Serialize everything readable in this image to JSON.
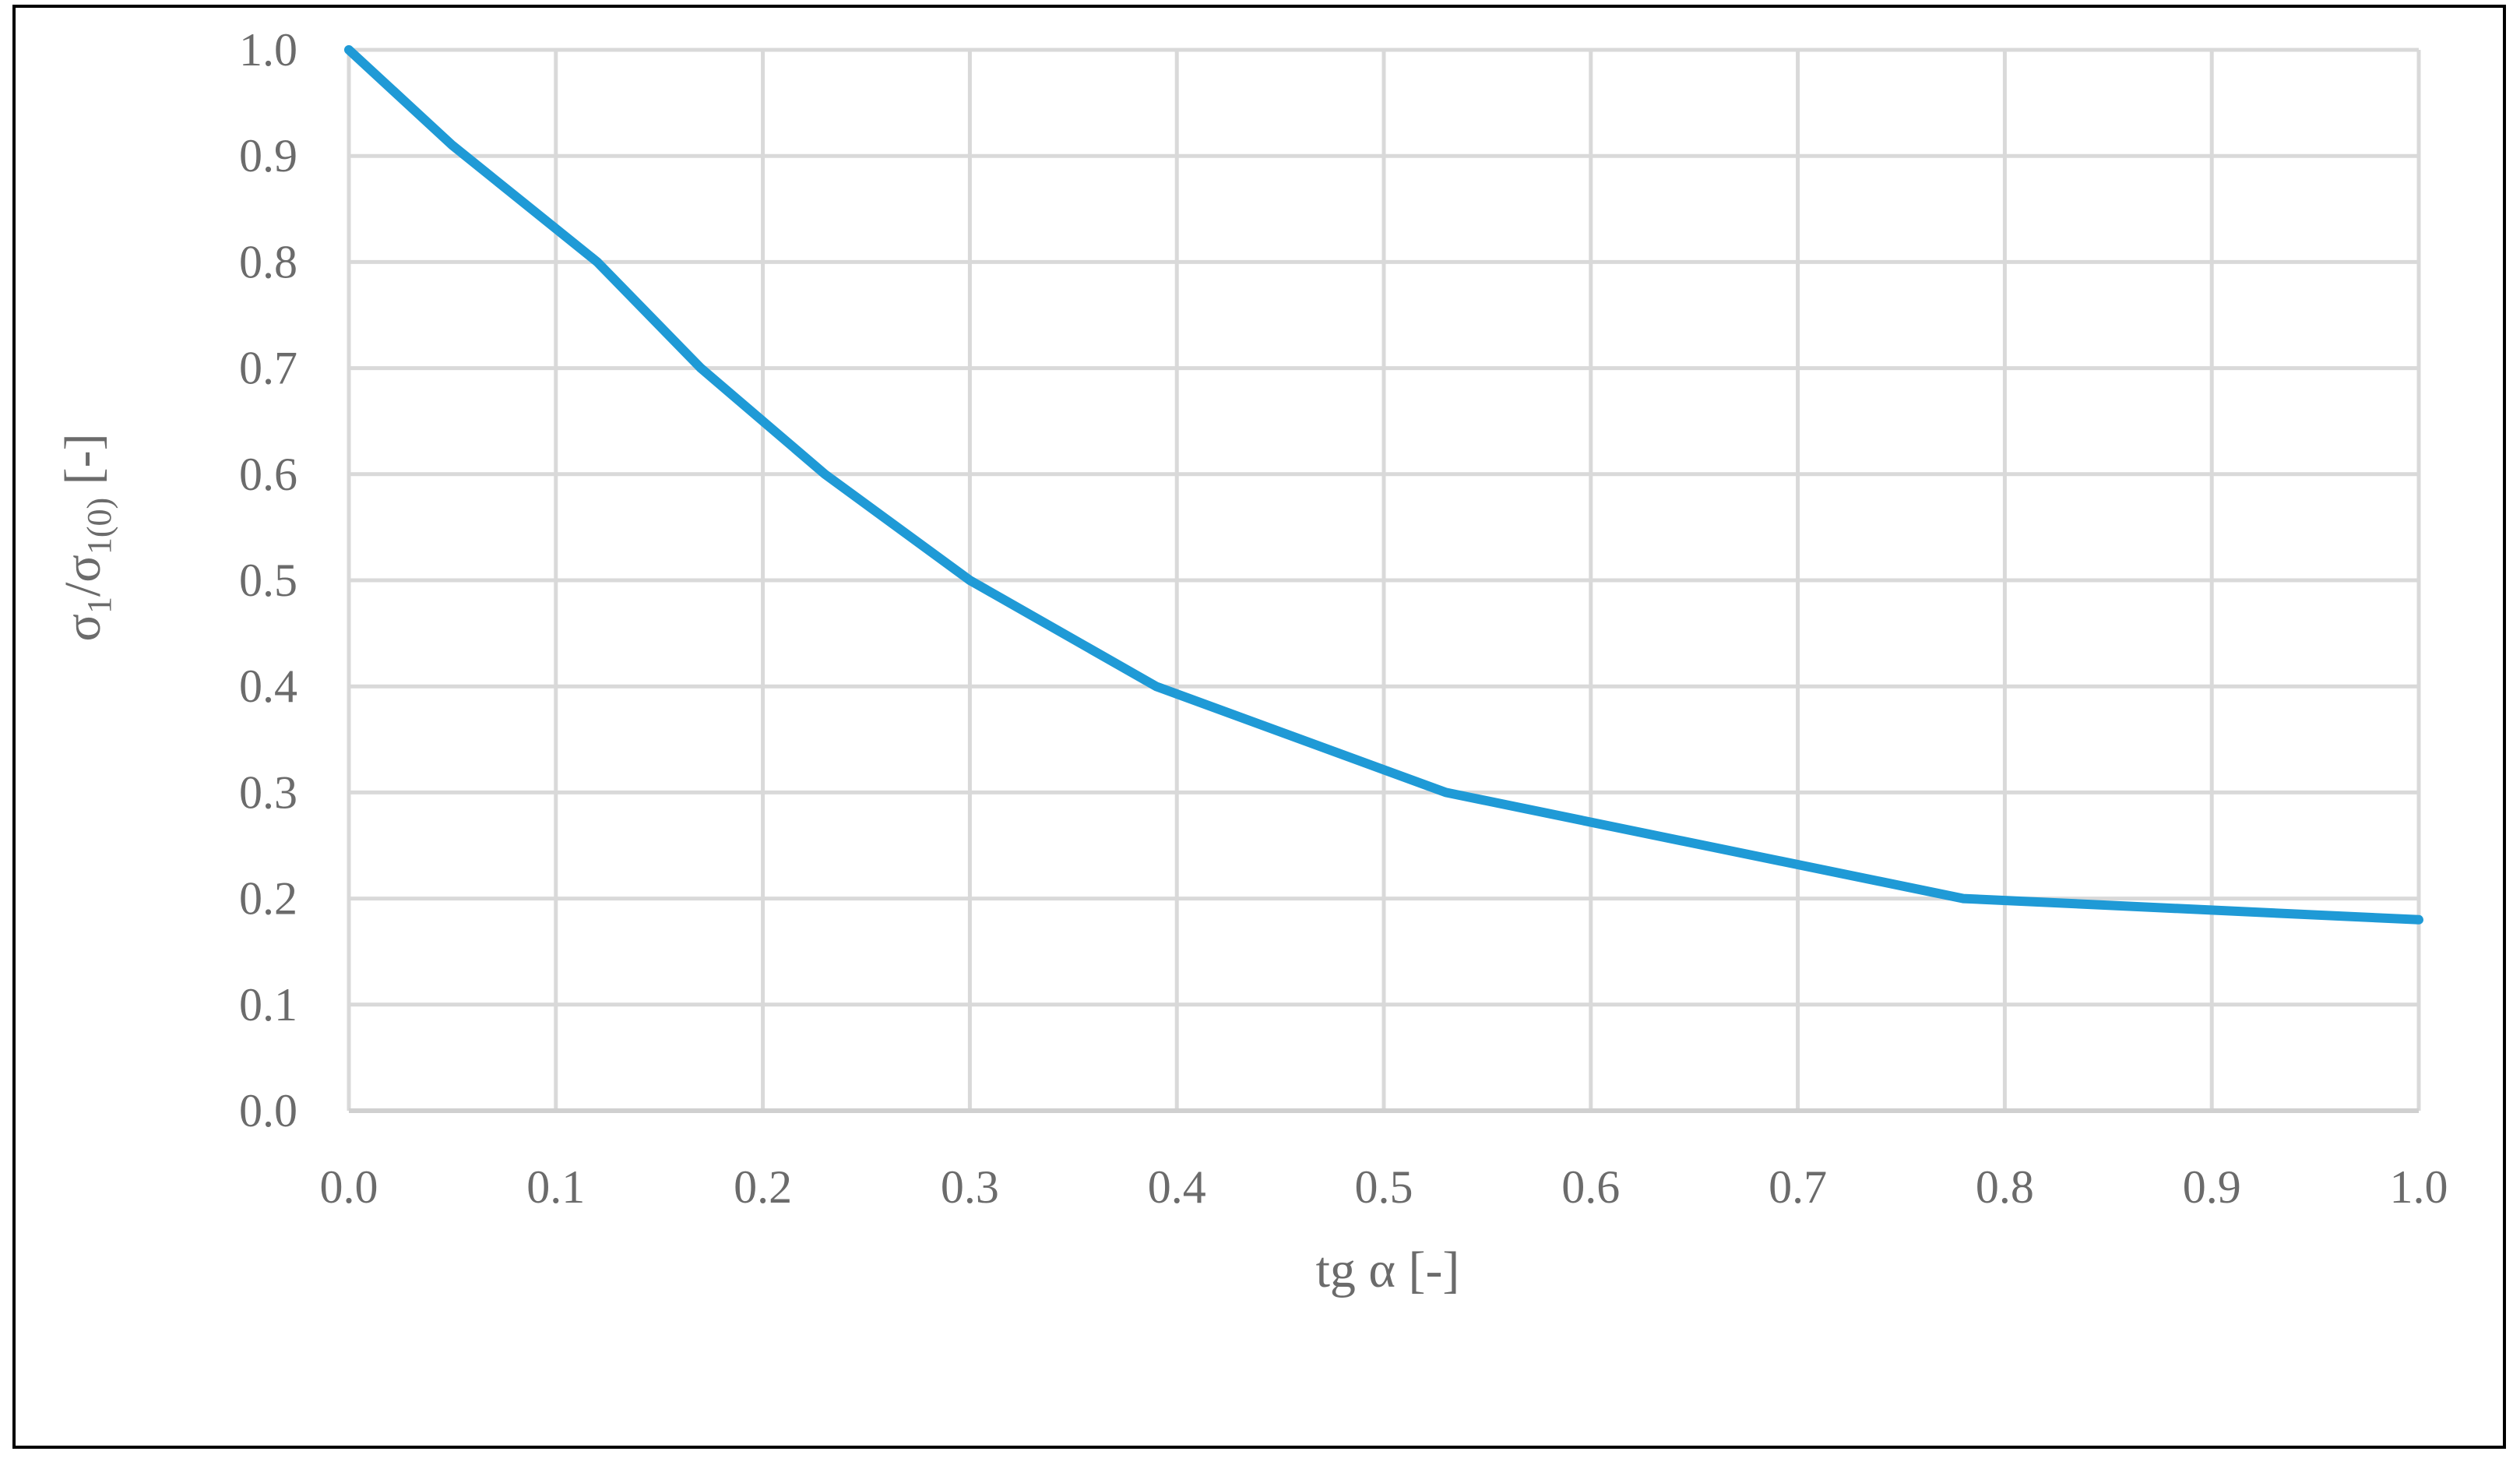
{
  "chart_data": {
    "type": "line",
    "title": "",
    "xlabel": "tg α [-]",
    "ylabel": {
      "sigma": "σ",
      "sub1": "1",
      "slash": "/",
      "sigma2": "σ",
      "sub2": "1(0)",
      "unit": " [-]"
    },
    "xlim": [
      0,
      1
    ],
    "ylim": [
      0,
      1
    ],
    "x_ticks": [
      "0.0",
      "0.1",
      "0.2",
      "0.3",
      "0.4",
      "0.5",
      "0.6",
      "0.7",
      "0.8",
      "0.9",
      "1.0"
    ],
    "y_ticks": [
      "0.0",
      "0.1",
      "0.2",
      "0.3",
      "0.4",
      "0.5",
      "0.6",
      "0.7",
      "0.8",
      "0.9",
      "1.0"
    ],
    "grid": true,
    "legend": "none",
    "series": [
      {
        "color": "#1f9ad6",
        "x": [
          0.0,
          0.05,
          0.12,
          0.17,
          0.23,
          0.3,
          0.39,
          0.53,
          0.78,
          1.0
        ],
        "y": [
          1.0,
          0.91,
          0.8,
          0.7,
          0.6,
          0.5,
          0.4,
          0.3,
          0.2,
          0.18
        ]
      }
    ]
  }
}
